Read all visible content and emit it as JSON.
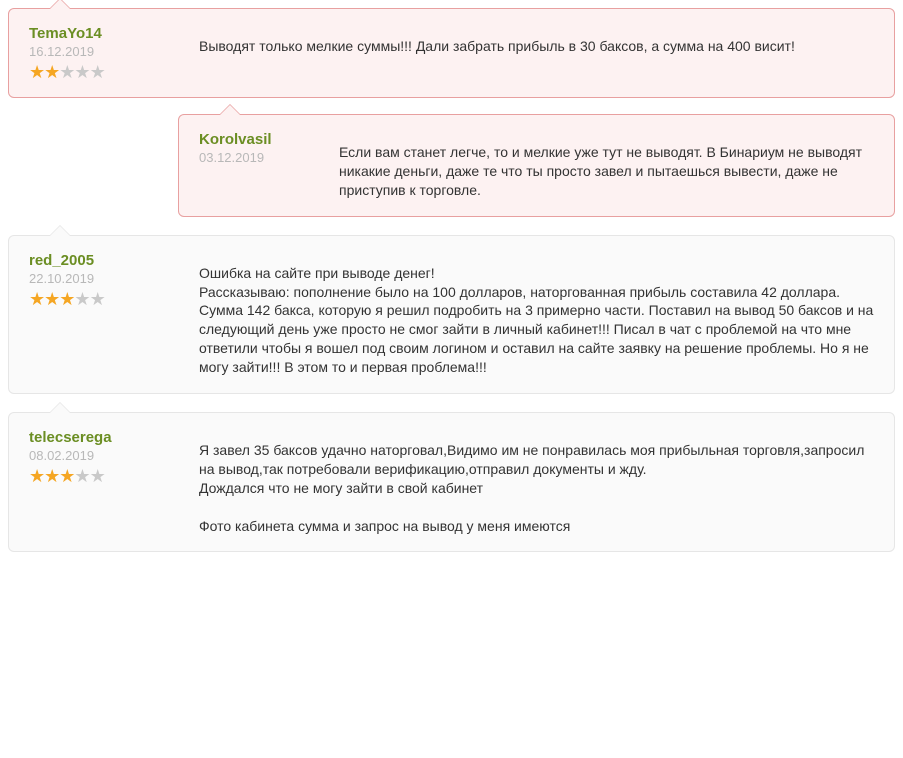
{
  "colors": {
    "negative_bg": "#fdf2f2",
    "negative_border": "#e8a0a0",
    "neutral_bg": "#fafafa",
    "neutral_border": "#e6e6e6",
    "username": "#6b8e23",
    "date": "#b8b8b8",
    "star_on": "#f5a623",
    "star_off": "#c9c9c9",
    "text": "#333333"
  },
  "comments": [
    {
      "id": "c1",
      "variant": "negative",
      "reply": false,
      "username": "TemaYo14",
      "date": "16.12.2019",
      "rating": 2,
      "rating_max": 5,
      "body": "Выводят только мелкие суммы!!! Дали забрать прибыль в 30 баксов, а сумма на 400 висит!"
    },
    {
      "id": "c2",
      "variant": "negative",
      "reply": true,
      "username": "Korolvasil",
      "date": "03.12.2019",
      "rating": null,
      "rating_max": 5,
      "body": "Если вам станет легче, то и мелкие уже тут не выводят. В Бинариум не выводят никакие деньги, даже те что ты просто завел и пытаешься вывести, даже не приступив к торговле."
    },
    {
      "id": "c3",
      "variant": "neutral",
      "reply": false,
      "username": "red_2005",
      "date": "22.10.2019",
      "rating": 3,
      "rating_max": 5,
      "body": "Ошибка на сайте при выводе денег!\nРассказываю: пополнение было на 100 долларов, наторгованная прибыль составила 42 доллара. Сумма 142 бакса, которую я решил подробить на 3 примерно части. Поставил на вывод 50 баксов и на следующий день уже просто не смог зайти в личный кабинет!!! Писал в чат с проблемой на что мне ответили чтобы я вошел под своим логином и оставил на сайте заявку на решение проблемы. Но я не могу зайти!!! В этом то и первая проблема!!!"
    },
    {
      "id": "c4",
      "variant": "neutral",
      "reply": false,
      "username": "telecserega",
      "date": "08.02.2019",
      "rating": 3,
      "rating_max": 5,
      "body": "Я завел 35 баксов удачно наторговал,Видимо им не понравилась моя прибыльная торговля,запросил на вывод,так потребовали верификацию,отправил документы и жду.\nДождался что не могу зайти в свой кабинет\n\nФото кабинета сумма и запрос на вывод у меня имеются"
    }
  ]
}
